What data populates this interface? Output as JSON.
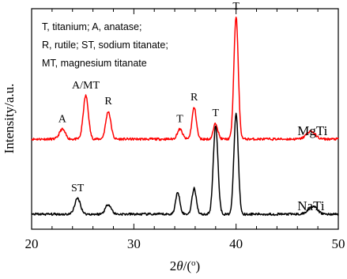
{
  "chart_data": {
    "type": "line",
    "xlabel": "2θ/(°)",
    "ylabel": "Intensity/a.u.",
    "xlim": [
      20,
      50
    ],
    "xticks": [
      20,
      30,
      40,
      50
    ],
    "legend": [
      "T, titanium; A, anatase;",
      "R, rutile; ST, sodium titanate;",
      "MT, magnesium titanate"
    ],
    "series": [
      {
        "name": "MgTi",
        "color": "#ff0000",
        "baseline": 0.4,
        "peaks": [
          {
            "x": 23.0,
            "h": 0.05,
            "w": 0.4
          },
          {
            "x": 25.3,
            "h": 0.22,
            "w": 0.35
          },
          {
            "x": 27.5,
            "h": 0.14,
            "w": 0.35
          },
          {
            "x": 34.5,
            "h": 0.05,
            "w": 0.35
          },
          {
            "x": 35.9,
            "h": 0.16,
            "w": 0.3
          },
          {
            "x": 38.0,
            "h": 0.08,
            "w": 0.3
          },
          {
            "x": 40.0,
            "h": 0.62,
            "w": 0.3
          },
          {
            "x": 47.3,
            "h": 0.04,
            "w": 0.6
          }
        ]
      },
      {
        "name": "NaTi",
        "color": "#000000",
        "baseline": 0.02,
        "peaks": [
          {
            "x": 24.5,
            "h": 0.08,
            "w": 0.4
          },
          {
            "x": 27.5,
            "h": 0.05,
            "w": 0.4
          },
          {
            "x": 34.3,
            "h": 0.11,
            "w": 0.3
          },
          {
            "x": 35.9,
            "h": 0.13,
            "w": 0.3
          },
          {
            "x": 38.0,
            "h": 0.45,
            "w": 0.32
          },
          {
            "x": 40.0,
            "h": 0.51,
            "w": 0.3
          },
          {
            "x": 47.5,
            "h": 0.04,
            "w": 0.6
          }
        ]
      }
    ],
    "annotations": [
      {
        "text": "A",
        "x": 23.0,
        "series": "MgTi"
      },
      {
        "text": "A/MT",
        "x": 25.3,
        "series": "MgTi"
      },
      {
        "text": "R",
        "x": 27.5,
        "series": "MgTi"
      },
      {
        "text": "T",
        "x": 34.5,
        "series": "MgTi"
      },
      {
        "text": "R",
        "x": 35.9,
        "series": "MgTi"
      },
      {
        "text": "T",
        "x": 38.0,
        "series": "MgTi"
      },
      {
        "text": "T",
        "x": 40.0,
        "series": "MgTi"
      },
      {
        "text": "ST",
        "x": 24.5,
        "series": "NaTi"
      }
    ]
  }
}
